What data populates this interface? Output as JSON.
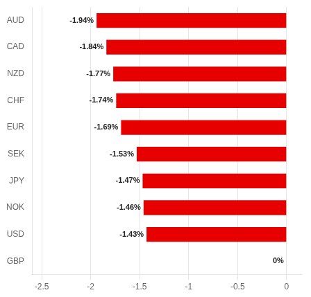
{
  "chart_data": {
    "type": "bar",
    "orientation": "horizontal",
    "categories": [
      "GBP",
      "USD",
      "NOK",
      "JPY",
      "SEK",
      "EUR",
      "CHF",
      "NZD",
      "CAD",
      "AUD"
    ],
    "values": [
      0,
      -1.43,
      -1.46,
      -1.47,
      -1.53,
      -1.69,
      -1.74,
      -1.77,
      -1.84,
      -1.94
    ],
    "value_labels": [
      "0%",
      "-1.43%",
      "-1.46%",
      "-1.47%",
      "-1.53%",
      "-1.69%",
      "-1.74%",
      "-1.77%",
      "-1.84%",
      "-1.94%"
    ],
    "data_labels": true,
    "color": "#e60000",
    "xlim": [
      -2.6,
      0.15
    ],
    "xticks": [
      -2.5,
      -2,
      -1.5,
      -1,
      -0.5,
      0
    ],
    "grid": true
  }
}
